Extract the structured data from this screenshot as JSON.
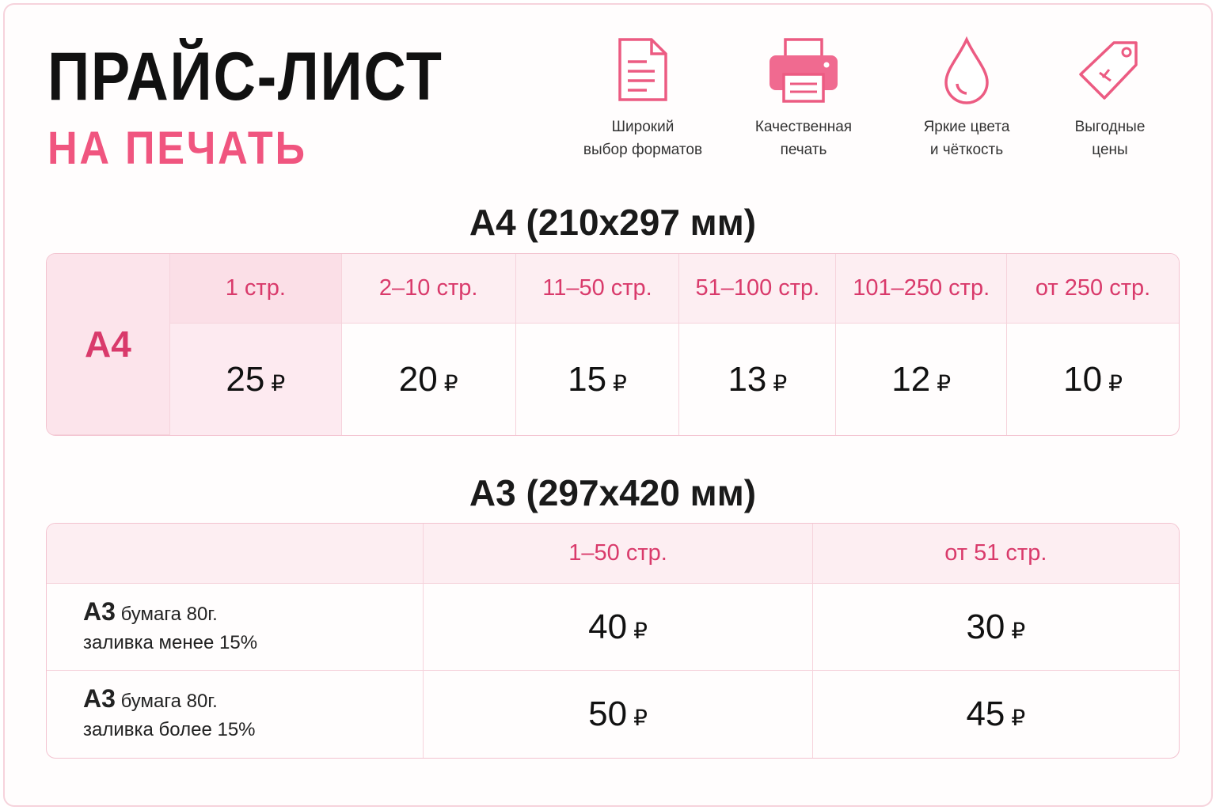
{
  "header": {
    "title": "ПРАЙС-ЛИСТ",
    "subtitle": "НА ПЕЧАТЬ"
  },
  "features": [
    {
      "lines": [
        "Широкий",
        "выбор форматов"
      ]
    },
    {
      "lines": [
        "Качественная",
        "печать"
      ]
    },
    {
      "lines": [
        "Яркие цвета",
        "и чёткость"
      ]
    },
    {
      "lines": [
        "Выгодные",
        "цены"
      ]
    }
  ],
  "currency": "₽",
  "a4": {
    "title": "A4 (210x297 мм)",
    "row_label": "A4",
    "columns": [
      "1 стр.",
      "2–10 стр.",
      "11–50 стр.",
      "51–100 стр.",
      "101–250 стр.",
      "от 250 стр."
    ],
    "prices": [
      25,
      20,
      15,
      13,
      12,
      10
    ]
  },
  "a3": {
    "title": "A3 (297x420 мм)",
    "columns": [
      "1–50 стр.",
      "от 51 стр."
    ],
    "rows": [
      {
        "label": "A3",
        "paper": "бумага 80г.",
        "fill": "заливка менее 15%",
        "prices": [
          40,
          30
        ]
      },
      {
        "label": "A3",
        "paper": "бумага 80г.",
        "fill": "заливка более 15%",
        "prices": [
          50,
          45
        ]
      }
    ]
  }
}
